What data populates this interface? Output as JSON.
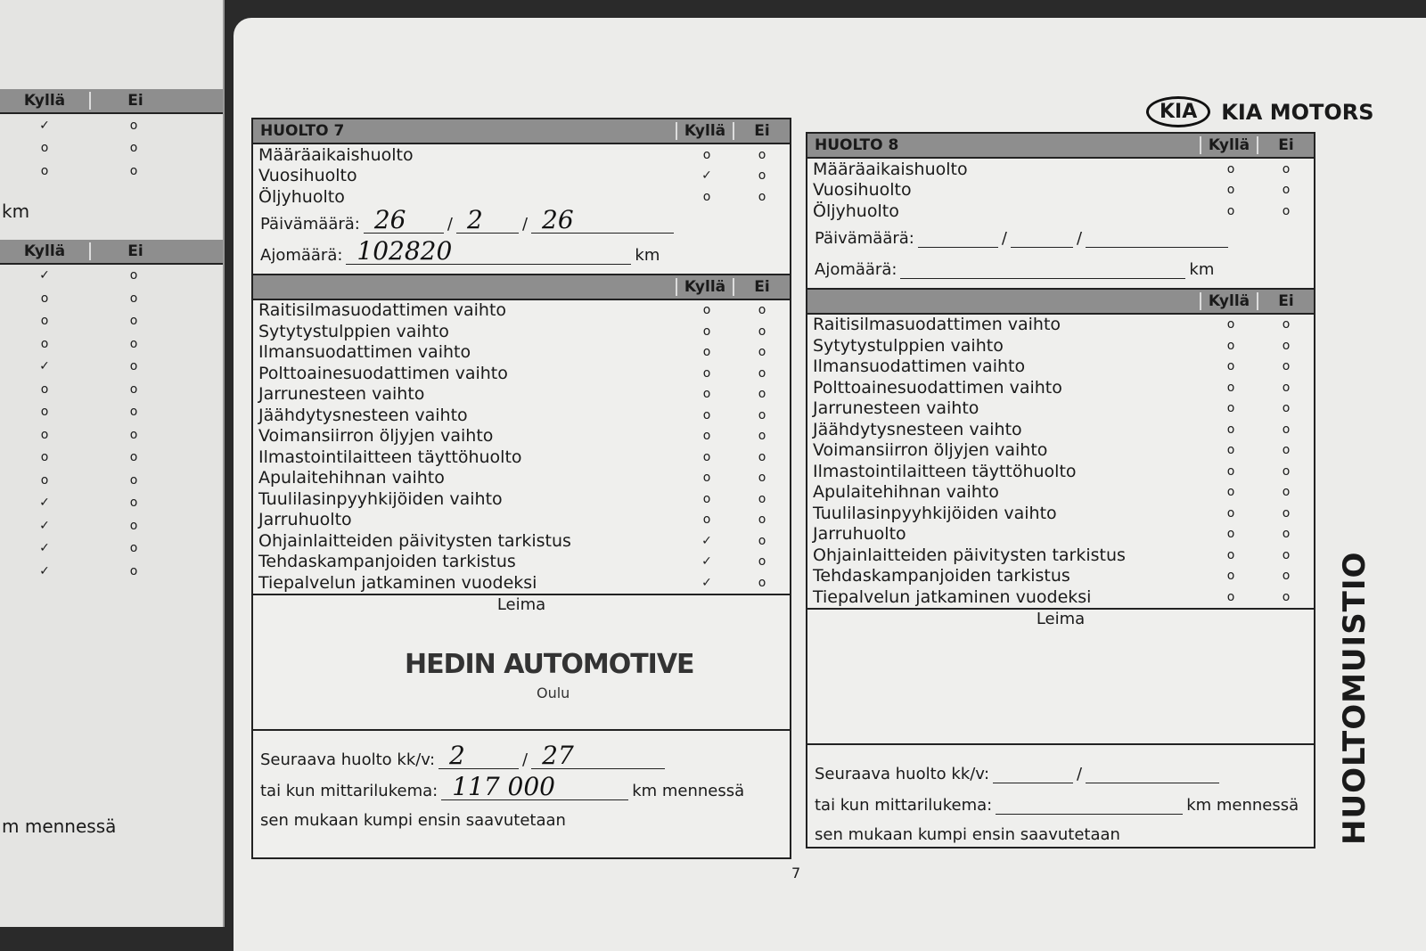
{
  "left_page": {
    "header1": {
      "yes": "Kyllä",
      "no": "Ei"
    },
    "rows1": [
      {
        "yes": "✓",
        "no": "o"
      },
      {
        "yes": "o",
        "no": "o"
      },
      {
        "yes": "o",
        "no": "o"
      }
    ],
    "km": "km",
    "header2": {
      "yes": "Kyllä",
      "no": "Ei"
    },
    "rows2": [
      {
        "yes": "✓",
        "no": "o"
      },
      {
        "yes": "o",
        "no": "o"
      },
      {
        "yes": "o",
        "no": "o"
      },
      {
        "yes": "o",
        "no": "o"
      },
      {
        "yes": "✓",
        "no": "o"
      },
      {
        "yes": "o",
        "no": "o"
      },
      {
        "yes": "o",
        "no": "o"
      },
      {
        "yes": "o",
        "no": "o"
      },
      {
        "yes": "o",
        "no": "o"
      },
      {
        "yes": "o",
        "no": "o"
      },
      {
        "yes": "✓",
        "no": "o"
      },
      {
        "yes": "✓",
        "no": "o"
      },
      {
        "yes": "✓",
        "no": "o"
      },
      {
        "yes": "✓",
        "no": "o"
      }
    ],
    "mennessa": "m mennessä"
  },
  "brand": {
    "logo": "KIA",
    "name": "KIA MOTORS"
  },
  "side_title": "HUOLTOMUISTIO",
  "page_number": "7",
  "huolto7": {
    "title": "HUOLTO 7",
    "yes": "Kyllä",
    "no": "Ei",
    "types": [
      {
        "label": "Määräaikaishuolto",
        "yes": "o",
        "no": "o"
      },
      {
        "label": "Vuosihuolto",
        "yes": "✓",
        "no": "o"
      },
      {
        "label": "Öljyhuolto",
        "yes": "o",
        "no": "o"
      }
    ],
    "date_label": "Päivämäärä:",
    "date": {
      "d": "26",
      "m": "2",
      "y": "26"
    },
    "km_label": "Ajomäärä:",
    "km_value": "102820",
    "km_unit": "km",
    "items": [
      {
        "label": "Raitisilmasuodattimen vaihto",
        "yes": "o",
        "no": "o"
      },
      {
        "label": "Sytytystulppien vaihto",
        "yes": "o",
        "no": "o"
      },
      {
        "label": "Ilmansuodattimen vaihto",
        "yes": "o",
        "no": "o"
      },
      {
        "label": "Polttoainesuodattimen vaihto",
        "yes": "o",
        "no": "o"
      },
      {
        "label": "Jarrunesteen vaihto",
        "yes": "o",
        "no": "o"
      },
      {
        "label": "Jäähdytysnesteen vaihto",
        "yes": "o",
        "no": "o"
      },
      {
        "label": "Voimansiirron öljyjen vaihto",
        "yes": "o",
        "no": "o"
      },
      {
        "label": "Ilmastointilaitteen täyttöhuolto",
        "yes": "o",
        "no": "o"
      },
      {
        "label": "Apulaitehihnan vaihto",
        "yes": "o",
        "no": "o"
      },
      {
        "label": "Tuulilasinpyyhkijöiden vaihto",
        "yes": "o",
        "no": "o"
      },
      {
        "label": "Jarruhuolto",
        "yes": "o",
        "no": "o"
      },
      {
        "label": "Ohjainlaitteiden päivitysten tarkistus",
        "yes": "✓",
        "no": "o"
      },
      {
        "label": "Tehdaskampanjoiden tarkistus",
        "yes": "✓",
        "no": "o"
      },
      {
        "label": "Tiepalvelun jatkaminen vuodeksi",
        "yes": "✓",
        "no": "o"
      }
    ],
    "stamp_label": "Leima",
    "stamp": "HEDIN AUTOMOTIVE",
    "stamp_sub": "Oulu",
    "next_label": "Seuraava huolto kk/v:",
    "next": {
      "m": "2",
      "y": "27"
    },
    "odo_label": "tai kun mittarilukema:",
    "odo_value": "117 000",
    "odo_unit": "km mennessä",
    "footer": "sen mukaan kumpi ensin saavutetaan"
  },
  "huolto8": {
    "title": "HUOLTO 8",
    "yes": "Kyllä",
    "no": "Ei",
    "types": [
      {
        "label": "Määräaikaishuolto",
        "yes": "o",
        "no": "o"
      },
      {
        "label": "Vuosihuolto",
        "yes": "o",
        "no": "o"
      },
      {
        "label": "Öljyhuolto",
        "yes": "o",
        "no": "o"
      }
    ],
    "date_label": "Päivämäärä:",
    "km_label": "Ajomäärä:",
    "km_unit": "km",
    "items": [
      {
        "label": "Raitisilmasuodattimen vaihto",
        "yes": "o",
        "no": "o"
      },
      {
        "label": "Sytytystulppien vaihto",
        "yes": "o",
        "no": "o"
      },
      {
        "label": "Ilmansuodattimen vaihto",
        "yes": "o",
        "no": "o"
      },
      {
        "label": "Polttoainesuodattimen vaihto",
        "yes": "o",
        "no": "o"
      },
      {
        "label": "Jarrunesteen vaihto",
        "yes": "o",
        "no": "o"
      },
      {
        "label": "Jäähdytysnesteen vaihto",
        "yes": "o",
        "no": "o"
      },
      {
        "label": "Voimansiirron öljyjen vaihto",
        "yes": "o",
        "no": "o"
      },
      {
        "label": "Ilmastointilaitteen täyttöhuolto",
        "yes": "o",
        "no": "o"
      },
      {
        "label": "Apulaitehihnan vaihto",
        "yes": "o",
        "no": "o"
      },
      {
        "label": "Tuulilasinpyyhkijöiden vaihto",
        "yes": "o",
        "no": "o"
      },
      {
        "label": "Jarruhuolto",
        "yes": "o",
        "no": "o"
      },
      {
        "label": "Ohjainlaitteiden päivitysten tarkistus",
        "yes": "o",
        "no": "o"
      },
      {
        "label": "Tehdaskampanjoiden tarkistus",
        "yes": "o",
        "no": "o"
      },
      {
        "label": "Tiepalvelun jatkaminen vuodeksi",
        "yes": "o",
        "no": "o"
      }
    ],
    "stamp_label": "Leima",
    "next_label": "Seuraava huolto kk/v:",
    "odo_label": "tai kun mittarilukema:",
    "odo_unit": "km mennessä",
    "footer": "sen mukaan kumpi ensin saavutetaan"
  }
}
